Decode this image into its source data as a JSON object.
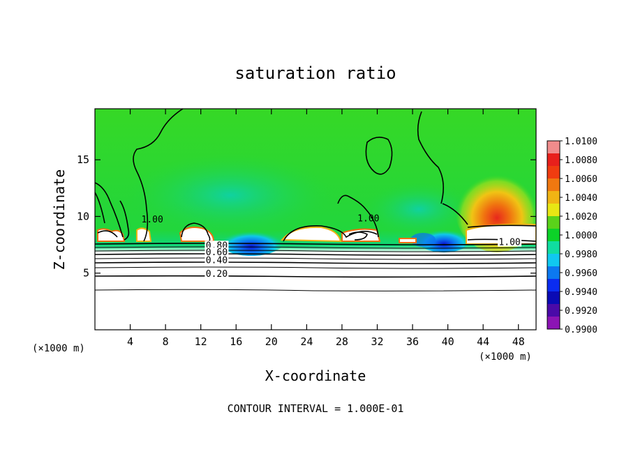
{
  "chart_data": {
    "type": "heatmap",
    "title": "saturation ratio",
    "xlabel": "X-coordinate",
    "ylabel": "Z-coordinate",
    "x_unit_left": "(×1000 m)",
    "x_unit_right": "(×1000 m)",
    "footer": "CONTOUR INTERVAL = 1.000E-01",
    "xlim": [
      0,
      50
    ],
    "ylim": [
      0,
      19.5
    ],
    "x_ticks": [
      4,
      8,
      12,
      16,
      20,
      24,
      28,
      32,
      36,
      40,
      44,
      48
    ],
    "y_ticks": [
      5,
      10,
      15
    ],
    "colorbar": {
      "range": [
        0.99,
        1.01
      ],
      "labels": [
        "1.0100",
        "1.0080",
        "1.0060",
        "1.0040",
        "1.0020",
        "1.0000",
        "0.9980",
        "0.9960",
        "0.9940",
        "0.9920",
        "0.9900"
      ],
      "colors": [
        "#f08c8c",
        "#e8201c",
        "#f03c10",
        "#f07810",
        "#f0b414",
        "#e8e614",
        "#5ad21a",
        "#0cd228",
        "#10dca0",
        "#10c8f0",
        "#0c78f0",
        "#0a2cf0",
        "#0a0ab4",
        "#4a0aa8",
        "#8c14b4"
      ]
    },
    "contour_labels": [
      {
        "text": "0.80",
        "x": 13.8,
        "y": 7.3
      },
      {
        "text": "0.60",
        "x": 13.8,
        "y": 6.7
      },
      {
        "text": "0.40",
        "x": 13.8,
        "y": 6.0
      },
      {
        "text": "0.20",
        "x": 13.8,
        "y": 4.8
      },
      {
        "text": "1.00",
        "x": 6.5,
        "y": 9.6
      },
      {
        "text": "1.00",
        "x": 31.0,
        "y": 9.7
      },
      {
        "text": "1.00",
        "x": 47.0,
        "y": 7.6
      }
    ]
  }
}
